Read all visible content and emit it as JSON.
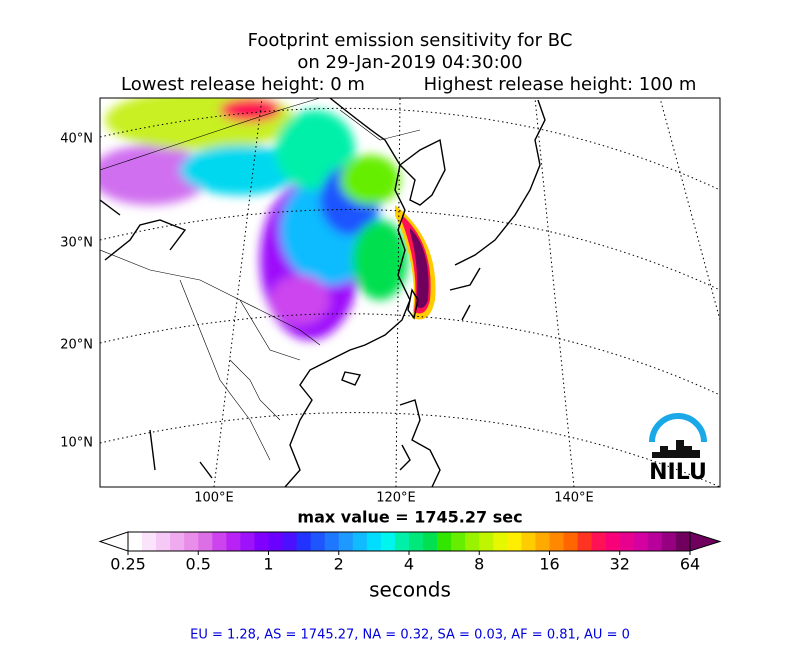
{
  "title": {
    "line1": "Footprint emission sensitivity for BC",
    "line2": "on 29-Jan-2019 04:30:00",
    "lowest": "Lowest release height: 0 m",
    "highest": "Highest release height: 100 m"
  },
  "map": {
    "lat_labels": [
      "40°N",
      "30°N",
      "20°N",
      "10°N"
    ],
    "lon_labels": [
      "100°E",
      "120°E",
      "140°E"
    ],
    "logo": "NILU"
  },
  "max_value": "max value = 1745.27 sec",
  "colorbar": {
    "ticks": [
      0.25,
      0.5,
      1,
      2,
      4,
      8,
      16,
      32,
      64
    ],
    "label": "seconds",
    "colors": [
      "#ffffff",
      "#fbe3fb",
      "#f6c8f6",
      "#f0aaf0",
      "#e88ee8",
      "#dd6fe6",
      "#cc44ee",
      "#b822f5",
      "#9d11fb",
      "#8000ff",
      "#6a00ff",
      "#4a10ff",
      "#2233ff",
      "#1f55ff",
      "#1e78ff",
      "#1d99ff",
      "#10bbff",
      "#00ddff",
      "#00f5ee",
      "#00f0aa",
      "#00e87a",
      "#00e050",
      "#33e600",
      "#66ee00",
      "#99f200",
      "#c0f500",
      "#e6f800",
      "#ffee00",
      "#ffcc00",
      "#ffaa00",
      "#ff8800",
      "#ff6600",
      "#ff3322",
      "#ff1155",
      "#f80077",
      "#e8008e",
      "#d400a0",
      "#b8009a",
      "#960080",
      "#70005e"
    ]
  },
  "footer": "EU = 1.28,  AS = 1745.27,  NA = 0.32,  SA = 0.03,  AF = 0.81,  AU = 0"
}
